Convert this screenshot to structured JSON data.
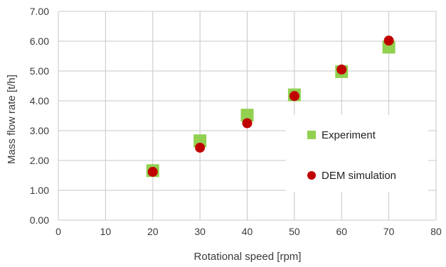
{
  "chart_data": {
    "type": "scatter",
    "title": "",
    "xlabel": "Rotational speed [rpm]",
    "ylabel": "Mass flow rate [t/h]",
    "xlim": [
      0,
      80
    ],
    "ylim": [
      0,
      7
    ],
    "xticks": [
      "0",
      "10",
      "20",
      "30",
      "40",
      "50",
      "60",
      "70",
      "80"
    ],
    "yticks": [
      "0.00",
      "1.00",
      "2.00",
      "3.00",
      "4.00",
      "5.00",
      "6.00",
      "7.00"
    ],
    "grid": true,
    "legend_position": "right",
    "series": [
      {
        "name": "Experiment",
        "marker": "square",
        "color": "#92d050",
        "points": [
          {
            "x": 20,
            "y": 1.66
          },
          {
            "x": 30,
            "y": 2.66
          },
          {
            "x": 40,
            "y": 3.52
          },
          {
            "x": 50,
            "y": 4.2
          },
          {
            "x": 60,
            "y": 4.98
          },
          {
            "x": 70,
            "y": 5.8
          }
        ]
      },
      {
        "name": "DEM simulation",
        "marker": "circle",
        "color": "#c00000",
        "points": [
          {
            "x": 20,
            "y": 1.62
          },
          {
            "x": 30,
            "y": 2.43
          },
          {
            "x": 40,
            "y": 3.25
          },
          {
            "x": 50,
            "y": 4.16
          },
          {
            "x": 60,
            "y": 5.05
          },
          {
            "x": 70,
            "y": 6.02
          }
        ]
      }
    ]
  }
}
